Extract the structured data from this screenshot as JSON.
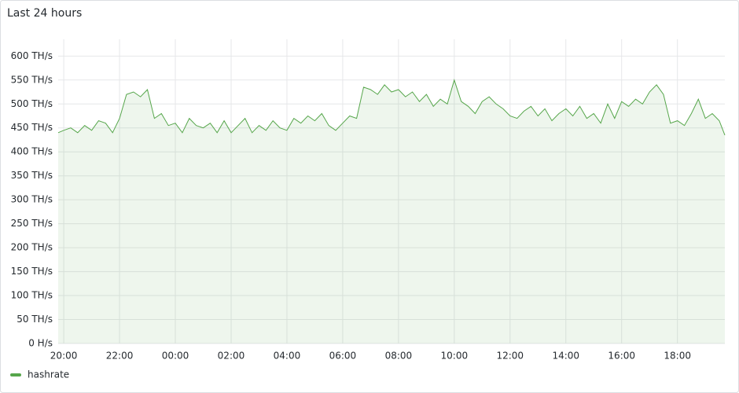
{
  "chart_data": {
    "type": "line",
    "title": "Last 24 hours",
    "x": [
      "19:48",
      "20:00",
      "20:15",
      "20:30",
      "20:45",
      "21:00",
      "21:15",
      "21:30",
      "21:45",
      "22:00",
      "22:15",
      "22:30",
      "22:45",
      "23:00",
      "23:15",
      "23:30",
      "23:45",
      "00:00",
      "00:15",
      "00:30",
      "00:45",
      "01:00",
      "01:15",
      "01:30",
      "01:45",
      "02:00",
      "02:15",
      "02:30",
      "02:45",
      "03:00",
      "03:15",
      "03:30",
      "03:45",
      "04:00",
      "04:15",
      "04:30",
      "04:45",
      "05:00",
      "05:15",
      "05:30",
      "05:45",
      "06:00",
      "06:15",
      "06:30",
      "06:45",
      "07:00",
      "07:15",
      "07:30",
      "07:45",
      "08:00",
      "08:15",
      "08:30",
      "08:45",
      "09:00",
      "09:15",
      "09:30",
      "09:45",
      "10:00",
      "10:15",
      "10:30",
      "10:45",
      "11:00",
      "11:15",
      "11:30",
      "11:45",
      "12:00",
      "12:15",
      "12:30",
      "12:45",
      "13:00",
      "13:15",
      "13:30",
      "13:45",
      "14:00",
      "14:15",
      "14:30",
      "14:45",
      "15:00",
      "15:15",
      "15:30",
      "15:45",
      "16:00",
      "16:15",
      "16:30",
      "16:45",
      "17:00",
      "17:15",
      "17:30",
      "17:45",
      "18:00",
      "18:15",
      "18:30",
      "18:45",
      "19:00",
      "19:15",
      "19:30",
      "19:42"
    ],
    "series": [
      {
        "name": "hashrate",
        "color": "#56a64b",
        "values": [
          440,
          445,
          450,
          440,
          455,
          445,
          465,
          460,
          440,
          470,
          520,
          525,
          515,
          530,
          470,
          480,
          455,
          460,
          440,
          470,
          455,
          450,
          460,
          440,
          465,
          440,
          455,
          470,
          440,
          455,
          445,
          465,
          450,
          445,
          470,
          460,
          475,
          465,
          480,
          455,
          445,
          460,
          475,
          470,
          535,
          530,
          520,
          540,
          525,
          530,
          515,
          525,
          505,
          520,
          495,
          510,
          500,
          550,
          505,
          495,
          480,
          505,
          515,
          500,
          490,
          475,
          470,
          485,
          495,
          475,
          490,
          465,
          480,
          490,
          475,
          495,
          470,
          480,
          460,
          500,
          470,
          505,
          495,
          510,
          500,
          525,
          540,
          520,
          460,
          465,
          455,
          480,
          510,
          470,
          480,
          465,
          435
        ]
      }
    ],
    "xlim": [
      "19:48",
      "19:42"
    ],
    "xticks": [
      "20:00",
      "22:00",
      "00:00",
      "02:00",
      "04:00",
      "06:00",
      "08:00",
      "10:00",
      "12:00",
      "14:00",
      "16:00",
      "18:00"
    ],
    "ylim": [
      0,
      635
    ],
    "yticks": [
      {
        "value": 0,
        "label": "0 H/s"
      },
      {
        "value": 50,
        "label": "50 TH/s"
      },
      {
        "value": 100,
        "label": "100 TH/s"
      },
      {
        "value": 150,
        "label": "150 TH/s"
      },
      {
        "value": 200,
        "label": "200 TH/s"
      },
      {
        "value": 250,
        "label": "250 TH/s"
      },
      {
        "value": 300,
        "label": "300 TH/s"
      },
      {
        "value": 350,
        "label": "350 TH/s"
      },
      {
        "value": 400,
        "label": "400 TH/s"
      },
      {
        "value": 450,
        "label": "450 TH/s"
      },
      {
        "value": 500,
        "label": "500 TH/s"
      },
      {
        "value": 550,
        "label": "550 TH/s"
      },
      {
        "value": 600,
        "label": "600 TH/s"
      }
    ],
    "grid": true
  }
}
